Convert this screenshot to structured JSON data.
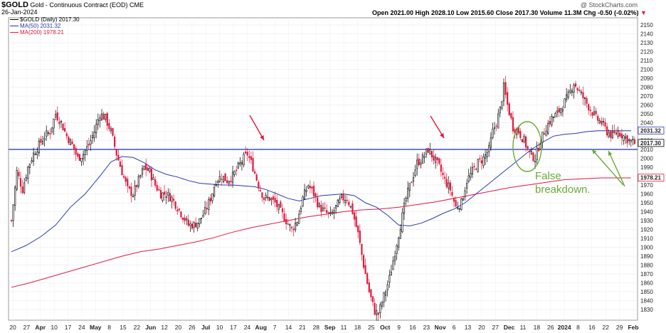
{
  "header": {
    "ticker": "$GOLD",
    "name": "Gold - Continuous Contract (EOD)",
    "exchange": "CME",
    "date": "26-Jan-2024",
    "watermark": "@ StockCharts.com",
    "ohlc": "Open 2021.00  High 2028.10  Low 2015.60  Close 2017.30  Volume 11.3M  Chg -0.50 (-0.02%)",
    "down_arrow": "▼"
  },
  "legend": {
    "main": "$GOLD (Daily) 2017.30",
    "ma50": "MA(50) 2031.32",
    "ma200": "MA(200) 1978.21"
  },
  "annotation": {
    "text_line1": "False",
    "text_line2": "breakdown."
  },
  "colors": {
    "up": "#000000",
    "down": "#e3183c",
    "ma50": "#2a3bb0",
    "ma200": "#e3183c",
    "hline": "#1b2fb5",
    "arrow_red": "#e3183c",
    "annotation_green": "#6aaa3a",
    "grid": "#e6e6e6"
  },
  "chart_data": {
    "type": "candlestick",
    "ylim": [
      1818,
      2158
    ],
    "y_ticks": [
      1830,
      1840,
      1850,
      1860,
      1870,
      1880,
      1890,
      1900,
      1910,
      1920,
      1930,
      1940,
      1950,
      1960,
      1970,
      1980,
      1990,
      2000,
      2010,
      2020,
      2030,
      2040,
      2050,
      2060,
      2070,
      2080,
      2090,
      2100,
      2110,
      2120,
      2130,
      2140,
      2150
    ],
    "x_labels": [
      "20",
      "27",
      "Apr",
      "10",
      "17",
      "24",
      "May",
      "8",
      "15",
      "22",
      "Jun",
      "12",
      "20",
      "26",
      "Jul",
      "10",
      "17",
      "24",
      "Aug",
      "7",
      "14",
      "21",
      "28",
      "Sep",
      "11",
      "18",
      "25",
      "Oct",
      "9",
      "16",
      "23",
      "Nov",
      "6",
      "13",
      "20",
      "27",
      "Dec",
      "11",
      "18",
      "26",
      "2024",
      "8",
      "16",
      "22",
      "29",
      "Feb"
    ],
    "x_major": [
      "Apr",
      "May",
      "Jun",
      "Jul",
      "Aug",
      "Sep",
      "Oct",
      "Nov",
      "Dec",
      "2024",
      "Feb"
    ],
    "horizontal_line": 2010,
    "last_values": {
      "close": 2017.3,
      "ma50": 2031.32,
      "ma200": 1978.21
    },
    "close_path": [
      [
        0,
        1930
      ],
      [
        3,
        1985
      ],
      [
        6,
        1965
      ],
      [
        9,
        1990
      ],
      [
        12,
        2005
      ],
      [
        15,
        2015
      ],
      [
        18,
        2025
      ],
      [
        21,
        2030
      ],
      [
        24,
        2050
      ],
      [
        27,
        2040
      ],
      [
        30,
        2025
      ],
      [
        33,
        2015
      ],
      [
        36,
        2000
      ],
      [
        39,
        2005
      ],
      [
        42,
        2015
      ],
      [
        45,
        2030
      ],
      [
        48,
        2050
      ],
      [
        51,
        2045
      ],
      [
        54,
        2030
      ],
      [
        57,
        2005
      ],
      [
        60,
        1985
      ],
      [
        63,
        1965
      ],
      [
        66,
        1960
      ],
      [
        69,
        1975
      ],
      [
        72,
        1990
      ],
      [
        75,
        1985
      ],
      [
        78,
        1970
      ],
      [
        81,
        1960
      ],
      [
        84,
        1960
      ],
      [
        87,
        1955
      ],
      [
        90,
        1945
      ],
      [
        93,
        1935
      ],
      [
        96,
        1925
      ],
      [
        99,
        1925
      ],
      [
        102,
        1930
      ],
      [
        105,
        1940
      ],
      [
        108,
        1955
      ],
      [
        111,
        1975
      ],
      [
        114,
        1980
      ],
      [
        117,
        1975
      ],
      [
        120,
        1980
      ],
      [
        123,
        1990
      ],
      [
        126,
        2000
      ],
      [
        128,
        2005
      ],
      [
        131,
        1990
      ],
      [
        134,
        1970
      ],
      [
        137,
        1955
      ],
      [
        140,
        1955
      ],
      [
        143,
        1950
      ],
      [
        146,
        1940
      ],
      [
        149,
        1930
      ],
      [
        152,
        1920
      ],
      [
        155,
        1930
      ],
      [
        158,
        1955
      ],
      [
        161,
        1970
      ],
      [
        164,
        1960
      ],
      [
        167,
        1945
      ],
      [
        170,
        1940
      ],
      [
        173,
        1935
      ],
      [
        176,
        1945
      ],
      [
        179,
        1955
      ],
      [
        182,
        1955
      ],
      [
        185,
        1940
      ],
      [
        188,
        1915
      ],
      [
        191,
        1880
      ],
      [
        194,
        1850
      ],
      [
        197,
        1828
      ],
      [
        199,
        1825
      ],
      [
        202,
        1845
      ],
      [
        205,
        1865
      ],
      [
        208,
        1895
      ],
      [
        211,
        1925
      ],
      [
        214,
        1955
      ],
      [
        217,
        1975
      ],
      [
        220,
        1995
      ],
      [
        223,
        2000
      ],
      [
        226,
        2010
      ],
      [
        229,
        2000
      ],
      [
        232,
        1990
      ],
      [
        235,
        1975
      ],
      [
        238,
        1965
      ],
      [
        241,
        1945
      ],
      [
        244,
        1950
      ],
      [
        247,
        1975
      ],
      [
        250,
        1985
      ],
      [
        253,
        1995
      ],
      [
        256,
        2000
      ],
      [
        259,
        2010
      ],
      [
        261,
        2030
      ],
      [
        263,
        2040
      ],
      [
        265,
        2055
      ],
      [
        267,
        2080
      ],
      [
        269,
        2060
      ],
      [
        272,
        2035
      ],
      [
        275,
        2030
      ],
      [
        278,
        2020
      ],
      [
        281,
        2005
      ],
      [
        284,
        2000
      ],
      [
        287,
        2020
      ],
      [
        290,
        2035
      ],
      [
        293,
        2045
      ],
      [
        296,
        2050
      ],
      [
        299,
        2060
      ],
      [
        302,
        2070
      ],
      [
        305,
        2085
      ],
      [
        308,
        2075
      ],
      [
        311,
        2065
      ],
      [
        314,
        2055
      ],
      [
        317,
        2045
      ],
      [
        320,
        2040
      ],
      [
        323,
        2030
      ],
      [
        326,
        2025
      ],
      [
        329,
        2030
      ],
      [
        332,
        2025
      ],
      [
        335,
        2020
      ],
      [
        338,
        2017
      ]
    ],
    "ma50_path": [
      [
        0,
        1895
      ],
      [
        8,
        1902
      ],
      [
        16,
        1912
      ],
      [
        24,
        1925
      ],
      [
        32,
        1945
      ],
      [
        40,
        1960
      ],
      [
        48,
        1980
      ],
      [
        54,
        1996
      ],
      [
        60,
        2002
      ],
      [
        66,
        2001
      ],
      [
        72,
        1995
      ],
      [
        78,
        1987
      ],
      [
        84,
        1982
      ],
      [
        90,
        1979
      ],
      [
        96,
        1975
      ],
      [
        102,
        1972
      ],
      [
        108,
        1971
      ],
      [
        114,
        1970
      ],
      [
        120,
        1970
      ],
      [
        126,
        1969
      ],
      [
        132,
        1968
      ],
      [
        138,
        1965
      ],
      [
        144,
        1960
      ],
      [
        150,
        1955
      ],
      [
        156,
        1952
      ],
      [
        162,
        1955
      ],
      [
        168,
        1958
      ],
      [
        174,
        1959
      ],
      [
        180,
        1960
      ],
      [
        186,
        1958
      ],
      [
        192,
        1950
      ],
      [
        198,
        1945
      ],
      [
        204,
        1936
      ],
      [
        210,
        1925
      ],
      [
        216,
        1924
      ],
      [
        222,
        1927
      ],
      [
        228,
        1932
      ],
      [
        234,
        1938
      ],
      [
        240,
        1943
      ],
      [
        246,
        1950
      ],
      [
        252,
        1960
      ],
      [
        258,
        1970
      ],
      [
        264,
        1980
      ],
      [
        270,
        1990
      ],
      [
        276,
        2000
      ],
      [
        282,
        2010
      ],
      [
        288,
        2018
      ],
      [
        294,
        2025
      ],
      [
        300,
        2027
      ],
      [
        306,
        2028
      ],
      [
        312,
        2030
      ],
      [
        318,
        2031
      ],
      [
        324,
        2031
      ],
      [
        330,
        2031
      ],
      [
        336,
        2031
      ]
    ],
    "ma200_path": [
      [
        0,
        1855
      ],
      [
        10,
        1860
      ],
      [
        20,
        1866
      ],
      [
        30,
        1872
      ],
      [
        40,
        1878
      ],
      [
        50,
        1884
      ],
      [
        60,
        1890
      ],
      [
        70,
        1895
      ],
      [
        80,
        1898
      ],
      [
        90,
        1902
      ],
      [
        100,
        1906
      ],
      [
        110,
        1911
      ],
      [
        120,
        1917
      ],
      [
        130,
        1922
      ],
      [
        140,
        1926
      ],
      [
        150,
        1930
      ],
      [
        160,
        1934
      ],
      [
        170,
        1937
      ],
      [
        180,
        1940
      ],
      [
        190,
        1942
      ],
      [
        200,
        1943
      ],
      [
        210,
        1945
      ],
      [
        220,
        1948
      ],
      [
        230,
        1951
      ],
      [
        240,
        1955
      ],
      [
        250,
        1959
      ],
      [
        260,
        1963
      ],
      [
        270,
        1967
      ],
      [
        280,
        1970
      ],
      [
        290,
        1973
      ],
      [
        300,
        1976
      ],
      [
        310,
        1977
      ],
      [
        320,
        1978
      ],
      [
        330,
        1978
      ],
      [
        336,
        1978
      ]
    ],
    "series": [
      {
        "name": "$GOLD (Daily)",
        "close": 2017.3
      },
      {
        "name": "MA(50)",
        "value": 2031.32
      },
      {
        "name": "MA(200)",
        "value": 1978.21
      }
    ],
    "annotations": [
      "False",
      "breakdown."
    ]
  }
}
